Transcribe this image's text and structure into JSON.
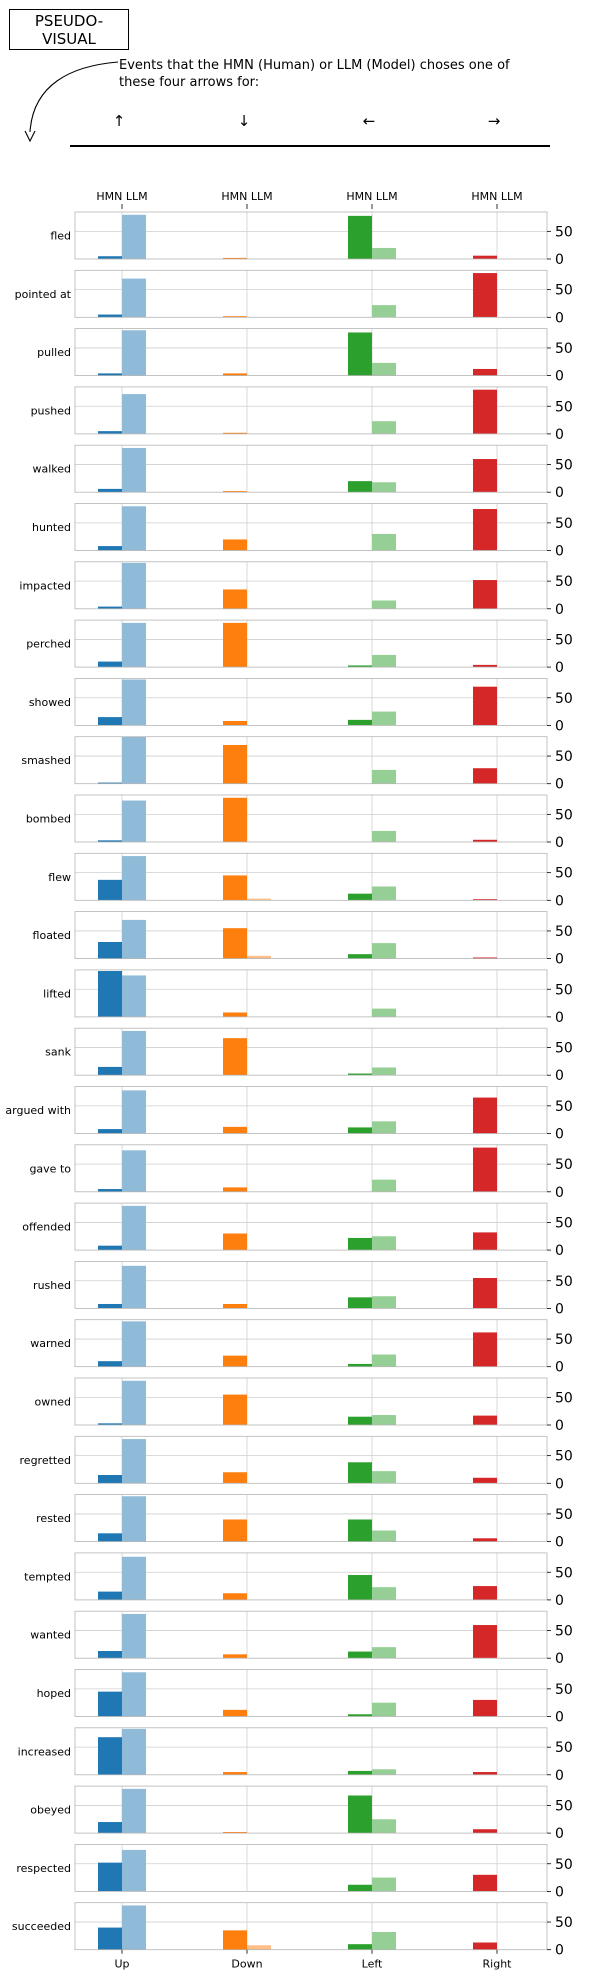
{
  "header": {
    "title": "PSEUDO-\nVISUAL",
    "subtitle": "Events that the HMN (Human) or LLM (Model) choses one of\nthese four arrows for:",
    "arrows": [
      "↑",
      "↓",
      "←",
      "→"
    ]
  },
  "chart_data": {
    "type": "bar",
    "top_tick_label": "HMN LLM",
    "columns": [
      "Up",
      "Down",
      "Left",
      "Right"
    ],
    "series": [
      {
        "name": "HMN"
      },
      {
        "name": "LLM"
      }
    ],
    "ylim": [
      0,
      85
    ],
    "yticks": [
      0,
      50
    ],
    "grid": true,
    "colors": {
      "Up": {
        "HMN": "#1f77b4",
        "LLM": "#8fbbd9"
      },
      "Down": {
        "HMN": "#ff7f0e",
        "LLM": "#ffbf86"
      },
      "Left": {
        "HMN": "#2ca02c",
        "LLM": "#95cf95"
      },
      "Right": {
        "HMN": "#d62728",
        "LLM": "#eb9394"
      }
    },
    "verbs": [
      {
        "name": "fled",
        "hmn": [
          5,
          2,
          78,
          6
        ],
        "llm": [
          80,
          0,
          20,
          0
        ]
      },
      {
        "name": "pointed at",
        "hmn": [
          5,
          2,
          0,
          80
        ],
        "llm": [
          70,
          0,
          22,
          0
        ]
      },
      {
        "name": "pulled",
        "hmn": [
          4,
          4,
          78,
          12
        ],
        "llm": [
          82,
          0,
          23,
          0
        ]
      },
      {
        "name": "pushed",
        "hmn": [
          5,
          2,
          0,
          80
        ],
        "llm": [
          72,
          0,
          23,
          0
        ]
      },
      {
        "name": "walked",
        "hmn": [
          6,
          2,
          20,
          60
        ],
        "llm": [
          80,
          0,
          18,
          0
        ]
      },
      {
        "name": "hunted",
        "hmn": [
          8,
          20,
          0,
          75
        ],
        "llm": [
          80,
          0,
          30,
          0
        ]
      },
      {
        "name": "impacted",
        "hmn": [
          4,
          35,
          0,
          52
        ],
        "llm": [
          83,
          0,
          15,
          0
        ]
      },
      {
        "name": "perched",
        "hmn": [
          10,
          80,
          3,
          4
        ],
        "llm": [
          80,
          0,
          22,
          0
        ]
      },
      {
        "name": "showed",
        "hmn": [
          15,
          8,
          10,
          70
        ],
        "llm": [
          83,
          0,
          25,
          0
        ]
      },
      {
        "name": "smashed",
        "hmn": [
          2,
          70,
          0,
          28
        ],
        "llm": [
          85,
          0,
          25,
          0
        ]
      },
      {
        "name": "bombed",
        "hmn": [
          3,
          80,
          0,
          4
        ],
        "llm": [
          75,
          0,
          20,
          0
        ]
      },
      {
        "name": "flew",
        "hmn": [
          37,
          45,
          12,
          2
        ],
        "llm": [
          80,
          3,
          25,
          0
        ]
      },
      {
        "name": "floated",
        "hmn": [
          30,
          55,
          8,
          2
        ],
        "llm": [
          70,
          5,
          28,
          0
        ]
      },
      {
        "name": "lifted",
        "hmn": [
          83,
          8,
          0,
          0
        ],
        "llm": [
          75,
          0,
          15,
          0
        ]
      },
      {
        "name": "sank",
        "hmn": [
          15,
          67,
          3,
          0
        ],
        "llm": [
          80,
          0,
          14,
          0
        ]
      },
      {
        "name": "argued with",
        "hmn": [
          8,
          12,
          11,
          65
        ],
        "llm": [
          78,
          0,
          22,
          0
        ]
      },
      {
        "name": "gave to",
        "hmn": [
          5,
          8,
          0,
          80
        ],
        "llm": [
          75,
          0,
          22,
          0
        ]
      },
      {
        "name": "offended",
        "hmn": [
          8,
          30,
          22,
          32
        ],
        "llm": [
          80,
          0,
          25,
          0
        ]
      },
      {
        "name": "rushed",
        "hmn": [
          8,
          8,
          20,
          55
        ],
        "llm": [
          77,
          0,
          22,
          0
        ]
      },
      {
        "name": "warned",
        "hmn": [
          10,
          20,
          5,
          62
        ],
        "llm": [
          82,
          0,
          22,
          0
        ]
      },
      {
        "name": "owned",
        "hmn": [
          3,
          55,
          15,
          17
        ],
        "llm": [
          80,
          0,
          18,
          0
        ]
      },
      {
        "name": "regretted",
        "hmn": [
          15,
          20,
          38,
          10
        ],
        "llm": [
          80,
          0,
          22,
          0
        ]
      },
      {
        "name": "rested",
        "hmn": [
          15,
          40,
          40,
          6
        ],
        "llm": [
          82,
          0,
          20,
          0
        ]
      },
      {
        "name": "tempted",
        "hmn": [
          15,
          12,
          45,
          25
        ],
        "llm": [
          78,
          0,
          23,
          0
        ]
      },
      {
        "name": "wanted",
        "hmn": [
          13,
          7,
          12,
          60
        ],
        "llm": [
          80,
          0,
          20,
          0
        ]
      },
      {
        "name": "hoped",
        "hmn": [
          45,
          12,
          4,
          30
        ],
        "llm": [
          80,
          0,
          25,
          0
        ]
      },
      {
        "name": "increased",
        "hmn": [
          68,
          5,
          7,
          5
        ],
        "llm": [
          83,
          0,
          10,
          0
        ]
      },
      {
        "name": "obeyed",
        "hmn": [
          20,
          2,
          68,
          7
        ],
        "llm": [
          80,
          0,
          25,
          0
        ]
      },
      {
        "name": "respected",
        "hmn": [
          52,
          0,
          12,
          30
        ],
        "llm": [
          75,
          0,
          25,
          0
        ]
      },
      {
        "name": "succeeded",
        "hmn": [
          40,
          35,
          10,
          13
        ],
        "llm": [
          80,
          8,
          32,
          0
        ]
      }
    ]
  }
}
